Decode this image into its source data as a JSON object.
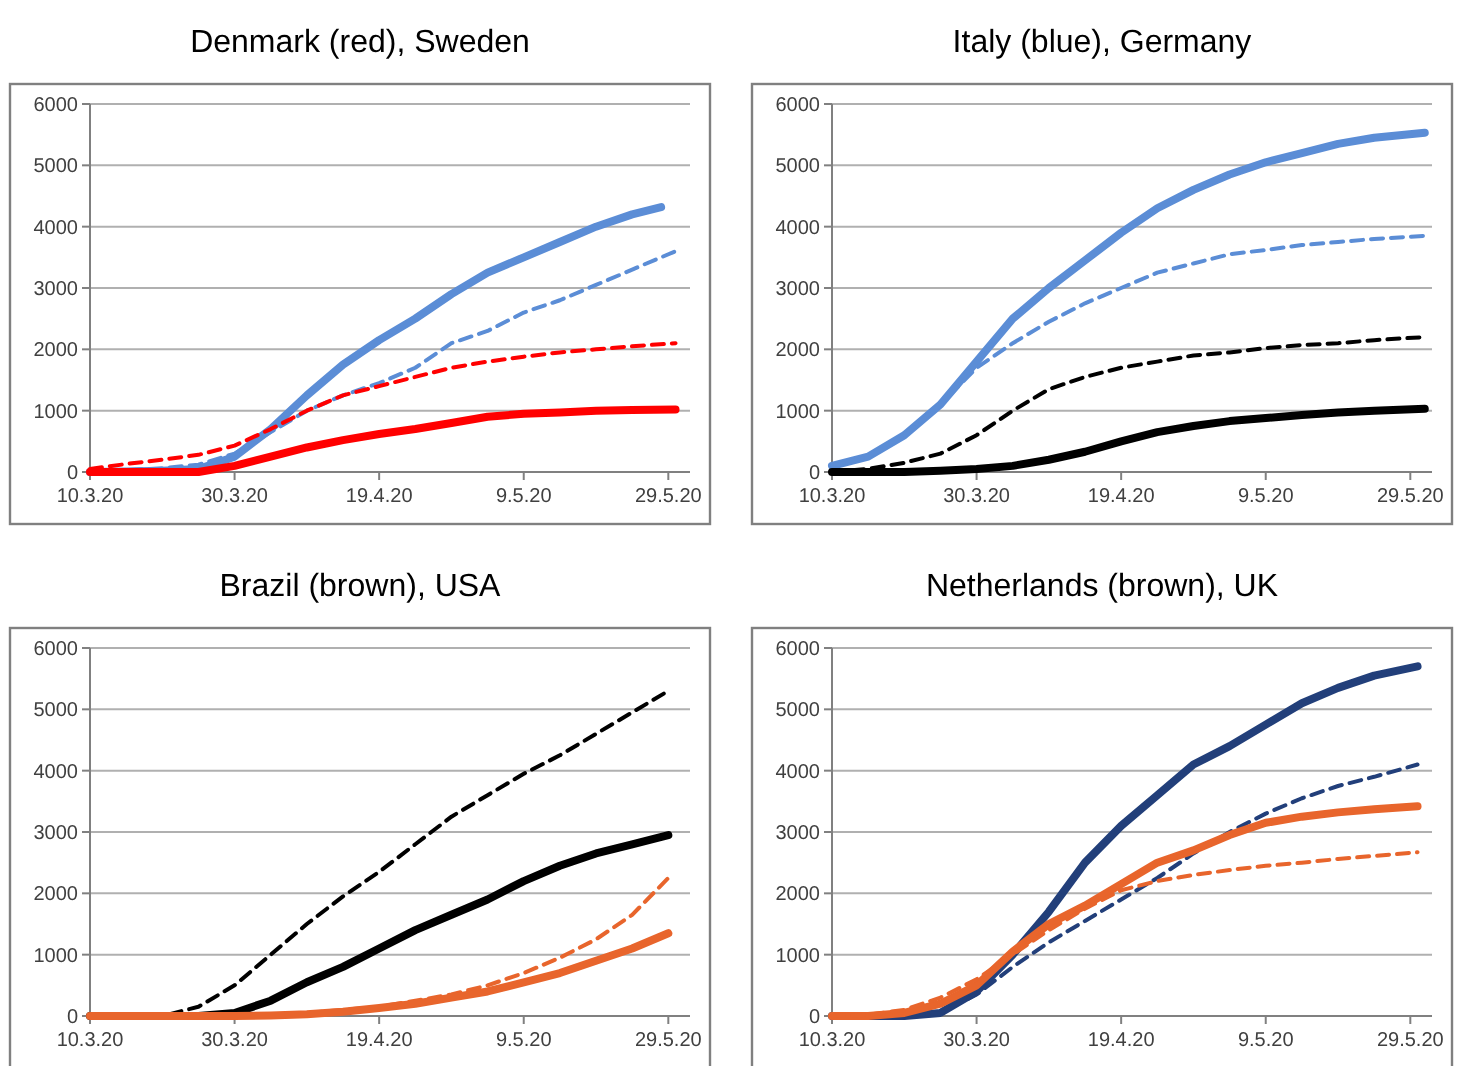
{
  "chart_data": [
    {
      "type": "line",
      "title": "Denmark (red), Sweden",
      "x": [
        "2020-03-10",
        "2020-03-15",
        "2020-03-20",
        "2020-03-25",
        "2020-03-30",
        "2020-04-04",
        "2020-04-09",
        "2020-04-14",
        "2020-04-19",
        "2020-04-24",
        "2020-04-29",
        "2020-05-04",
        "2020-05-09",
        "2020-05-14",
        "2020-05-19",
        "2020-05-24",
        "2020-05-30"
      ],
      "xlim": [
        "2020-03-10",
        "2020-06-01"
      ],
      "xticks": [
        {
          "value": "2020-03-10",
          "label": "10.3.20"
        },
        {
          "value": "2020-03-30",
          "label": "30.3.20"
        },
        {
          "value": "2020-04-19",
          "label": "19.4.20"
        },
        {
          "value": "2020-05-09",
          "label": "9.5.20"
        },
        {
          "value": "2020-05-29",
          "label": "29.5.20"
        }
      ],
      "ylim": [
        0,
        6000
      ],
      "yticks": [
        0,
        1000,
        2000,
        3000,
        4000,
        5000,
        6000
      ],
      "grid": "y",
      "series": [
        {
          "color": "#5b8dd6",
          "line_style": "solid",
          "x": [
            "2020-03-10",
            "2020-03-15",
            "2020-03-20",
            "2020-03-25",
            "2020-03-30",
            "2020-04-04",
            "2020-04-09",
            "2020-04-14",
            "2020-04-19",
            "2020-04-24",
            "2020-04-29",
            "2020-05-04",
            "2020-05-09",
            "2020-05-14",
            "2020-05-19",
            "2020-05-24",
            "2020-05-28"
          ],
          "values": [
            0,
            10,
            20,
            50,
            250,
            700,
            1250,
            1750,
            2150,
            2500,
            2900,
            3250,
            3500,
            3750,
            4000,
            4200,
            4320
          ]
        },
        {
          "color": "#5b8dd6",
          "line_style": "dashed",
          "values": [
            0,
            30,
            60,
            120,
            300,
            650,
            1000,
            1250,
            1450,
            1700,
            2100,
            2300,
            2600,
            2800,
            3050,
            3300,
            3600
          ]
        },
        {
          "color": "#ff0000",
          "line_style": "dashed",
          "values": [
            50,
            130,
            200,
            280,
            430,
            700,
            1000,
            1250,
            1400,
            1550,
            1700,
            1800,
            1880,
            1950,
            2000,
            2050,
            2100
          ]
        },
        {
          "color": "#ff0000",
          "line_style": "solid",
          "values": [
            0,
            0,
            0,
            0,
            100,
            250,
            400,
            520,
            620,
            700,
            800,
            900,
            950,
            970,
            1000,
            1010,
            1020
          ]
        }
      ]
    },
    {
      "type": "line",
      "title": "Italy (blue), Germany",
      "x": [
        "2020-03-10",
        "2020-03-15",
        "2020-03-20",
        "2020-03-25",
        "2020-03-30",
        "2020-04-04",
        "2020-04-09",
        "2020-04-14",
        "2020-04-19",
        "2020-04-24",
        "2020-04-29",
        "2020-05-04",
        "2020-05-09",
        "2020-05-14",
        "2020-05-19",
        "2020-05-24",
        "2020-05-31"
      ],
      "xlim": [
        "2020-03-10",
        "2020-06-01"
      ],
      "xticks": [
        {
          "value": "2020-03-10",
          "label": "10.3.20"
        },
        {
          "value": "2020-03-30",
          "label": "30.3.20"
        },
        {
          "value": "2020-04-19",
          "label": "19.4.20"
        },
        {
          "value": "2020-05-09",
          "label": "9.5.20"
        },
        {
          "value": "2020-05-29",
          "label": "29.5.20"
        }
      ],
      "ylim": [
        0,
        6000
      ],
      "yticks": [
        0,
        1000,
        2000,
        3000,
        4000,
        5000,
        6000
      ],
      "grid": "y",
      "series": [
        {
          "color": "#5b8dd6",
          "line_style": "solid",
          "values": [
            100,
            250,
            600,
            1100,
            1800,
            2500,
            3000,
            3450,
            3900,
            4300,
            4600,
            4850,
            5050,
            5200,
            5350,
            5450,
            5530
          ]
        },
        {
          "color": "#5b8dd6",
          "line_style": "dashed",
          "values": [
            100,
            250,
            600,
            1100,
            1700,
            2100,
            2450,
            2750,
            3000,
            3250,
            3400,
            3550,
            3620,
            3700,
            3750,
            3800,
            3850
          ]
        },
        {
          "color": "#000000",
          "line_style": "dashed",
          "values": [
            0,
            50,
            150,
            300,
            600,
            1000,
            1350,
            1550,
            1700,
            1800,
            1900,
            1950,
            2020,
            2070,
            2100,
            2150,
            2200
          ]
        },
        {
          "color": "#000000",
          "line_style": "solid",
          "values": [
            0,
            0,
            0,
            20,
            50,
            100,
            200,
            330,
            500,
            650,
            750,
            830,
            880,
            930,
            970,
            1000,
            1030
          ]
        }
      ]
    },
    {
      "type": "line",
      "title": "Brazil (brown), USA",
      "x": [
        "2020-03-10",
        "2020-03-15",
        "2020-03-20",
        "2020-03-25",
        "2020-03-30",
        "2020-04-04",
        "2020-04-09",
        "2020-04-14",
        "2020-04-19",
        "2020-04-24",
        "2020-04-29",
        "2020-05-04",
        "2020-05-09",
        "2020-05-14",
        "2020-05-19",
        "2020-05-24",
        "2020-05-29"
      ],
      "xlim": [
        "2020-03-10",
        "2020-06-01"
      ],
      "xticks": [
        {
          "value": "2020-03-10",
          "label": "10.3.20"
        },
        {
          "value": "2020-03-30",
          "label": "30.3.20"
        },
        {
          "value": "2020-04-19",
          "label": "19.4.20"
        },
        {
          "value": "2020-05-09",
          "label": "9.5.20"
        },
        {
          "value": "2020-05-29",
          "label": "29.5.20"
        }
      ],
      "ylim": [
        0,
        6000
      ],
      "yticks": [
        0,
        1000,
        2000,
        3000,
        4000,
        5000,
        6000
      ],
      "grid": "y",
      "series": [
        {
          "color": "#000000",
          "line_style": "dashed",
          "values": [
            0,
            0,
            0,
            150,
            500,
            1000,
            1500,
            1950,
            2350,
            2800,
            3250,
            3600,
            3950,
            4250,
            4600,
            4950,
            5300
          ]
        },
        {
          "color": "#000000",
          "line_style": "solid",
          "values": [
            0,
            0,
            0,
            0,
            50,
            250,
            550,
            800,
            1100,
            1400,
            1650,
            1900,
            2200,
            2450,
            2650,
            2800,
            2950
          ]
        },
        {
          "color": "#e8652c",
          "line_style": "dashed",
          "values": [
            0,
            0,
            0,
            0,
            0,
            20,
            50,
            100,
            150,
            250,
            350,
            500,
            700,
            950,
            1250,
            1650,
            2250
          ]
        },
        {
          "color": "#e8652c",
          "line_style": "solid",
          "values": [
            0,
            0,
            0,
            0,
            0,
            10,
            30,
            70,
            130,
            200,
            300,
            400,
            550,
            700,
            900,
            1100,
            1350
          ]
        }
      ]
    },
    {
      "type": "line",
      "title": "Netherlands (brown), UK",
      "x": [
        "2020-03-10",
        "2020-03-15",
        "2020-03-20",
        "2020-03-25",
        "2020-03-30",
        "2020-04-04",
        "2020-04-09",
        "2020-04-14",
        "2020-04-19",
        "2020-04-24",
        "2020-04-29",
        "2020-05-04",
        "2020-05-09",
        "2020-05-14",
        "2020-05-19",
        "2020-05-24",
        "2020-05-30"
      ],
      "xlim": [
        "2020-03-10",
        "2020-06-01"
      ],
      "xticks": [
        {
          "value": "2020-03-10",
          "label": "10.3.20"
        },
        {
          "value": "2020-03-30",
          "label": "30.3.20"
        },
        {
          "value": "2020-04-19",
          "label": "19.4.20"
        },
        {
          "value": "2020-05-09",
          "label": "9.5.20"
        },
        {
          "value": "2020-05-29",
          "label": "29.5.20"
        }
      ],
      "ylim": [
        0,
        6000
      ],
      "yticks": [
        0,
        1000,
        2000,
        3000,
        4000,
        5000,
        6000
      ],
      "grid": "y",
      "series": [
        {
          "color": "#223f7a",
          "line_style": "solid",
          "values": [
            0,
            0,
            0,
            50,
            400,
            1000,
            1700,
            2500,
            3100,
            3600,
            4100,
            4400,
            4750,
            5100,
            5350,
            5550,
            5700
          ]
        },
        {
          "color": "#223f7a",
          "line_style": "dashed",
          "values": [
            0,
            0,
            0,
            50,
            350,
            800,
            1200,
            1550,
            1900,
            2250,
            2650,
            3000,
            3300,
            3550,
            3750,
            3900,
            4100
          ]
        },
        {
          "color": "#e8652c",
          "line_style": "solid",
          "values": [
            0,
            0,
            50,
            200,
            500,
            1050,
            1500,
            1800,
            2150,
            2500,
            2700,
            2950,
            3150,
            3250,
            3320,
            3370,
            3420
          ]
        },
        {
          "color": "#e8652c",
          "line_style": "dashed",
          "values": [
            0,
            20,
            100,
            300,
            600,
            1000,
            1400,
            1750,
            2050,
            2200,
            2300,
            2380,
            2450,
            2500,
            2560,
            2610,
            2670
          ]
        }
      ]
    }
  ]
}
